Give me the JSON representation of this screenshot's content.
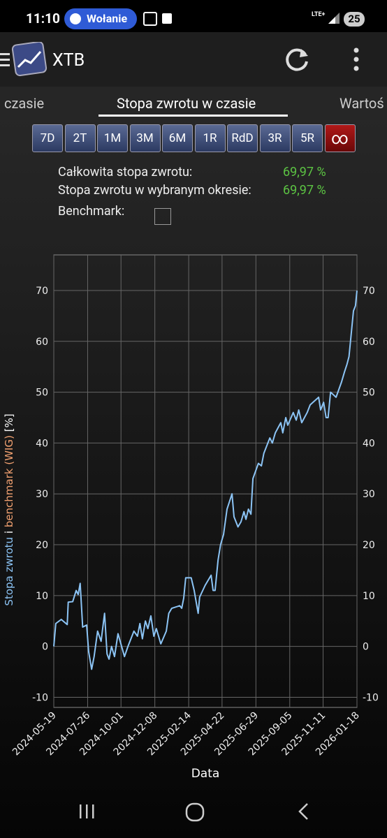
{
  "status_bar": {
    "time": "11:10",
    "call": "Wołanie",
    "network": "LTE+",
    "battery": "25"
  },
  "app_bar": {
    "title": "XTB"
  },
  "tabs": [
    "czasie",
    "Stopa zwrotu w czasie",
    "Wartoś"
  ],
  "periods": [
    "7D",
    "2T",
    "1M",
    "3M",
    "6M",
    "1R",
    "RdD",
    "3R",
    "5R",
    "∞"
  ],
  "stats": [
    {
      "label": "Całkowita stopa zwrotu:",
      "value": "69,97 %"
    },
    {
      "label": "Stopa zwrotu w wybranym okresie:",
      "value": "69,97 %"
    }
  ],
  "benchmark_label": "Benchmark:",
  "chart_data": {
    "type": "line",
    "x_label": "Data",
    "y_label": {
      "series": "Stopa zwrotu",
      "joiner": "i",
      "benchmark": "benchmark (WIG)",
      "unit": "[%]"
    },
    "x": [
      "2024-05-19",
      "2024-05-23",
      "2024-06-03",
      "2024-06-15",
      "2024-06-17",
      "2024-06-26",
      "2024-07-03",
      "2024-07-07",
      "2024-07-11",
      "2024-07-16",
      "2024-07-24",
      "2024-07-28",
      "2024-08-03",
      "2024-08-08",
      "2024-08-15",
      "2024-08-22",
      "2024-08-29",
      "2024-09-03",
      "2024-09-07",
      "2024-09-12",
      "2024-09-18",
      "2024-09-25",
      "2024-10-08",
      "2024-10-15",
      "2024-10-27",
      "2024-11-03",
      "2024-11-08",
      "2024-11-13",
      "2024-11-19",
      "2024-11-24",
      "2024-11-30",
      "2024-12-06",
      "2024-12-11",
      "2024-12-20",
      "2024-12-31",
      "2025-01-05",
      "2025-01-11",
      "2025-01-27",
      "2025-01-31",
      "2025-02-04",
      "2025-02-08",
      "2025-02-19",
      "2025-02-25",
      "2025-03-05",
      "2025-03-08",
      "2025-03-19",
      "2025-03-31",
      "2025-04-04",
      "2025-04-08",
      "2025-04-14",
      "2025-04-19",
      "2025-04-25",
      "2025-05-02",
      "2025-05-12",
      "2025-05-16",
      "2025-05-24",
      "2025-05-30",
      "2025-06-05",
      "2025-06-09",
      "2025-06-14",
      "2025-06-19",
      "2025-06-23",
      "2025-07-04",
      "2025-07-10",
      "2025-07-15",
      "2025-07-27",
      "2025-08-01",
      "2025-08-07",
      "2025-08-18",
      "2025-08-22",
      "2025-08-28",
      "2025-09-01",
      "2025-09-12",
      "2025-09-18",
      "2025-09-23",
      "2025-09-29",
      "2025-10-10",
      "2025-10-16",
      "2025-11-02",
      "2025-11-06",
      "2025-11-12",
      "2025-11-17",
      "2025-11-21",
      "2025-11-26",
      "2025-12-07",
      "2025-12-18",
      "2025-12-24",
      "2025-12-29",
      "2026-01-02",
      "2026-01-07",
      "2026-01-11",
      "2026-01-15",
      "2026-01-18"
    ],
    "series": [
      {
        "color": "#8cc4f5",
        "values": [
          0,
          4.5,
          5.3,
          4.3,
          8.7,
          8.8,
          11,
          10.2,
          12.4,
          3.8,
          4.2,
          -1,
          -4.5,
          -2,
          3,
          1,
          6.5,
          -1.5,
          -2.5,
          0,
          -2,
          2.5,
          -2,
          0,
          3,
          2,
          4.5,
          1.5,
          5,
          3.5,
          6,
          2,
          3.5,
          0.5,
          3,
          6.5,
          7.5,
          8,
          7.5,
          9.5,
          13.5,
          13.5,
          11,
          6.5,
          9.7,
          12,
          14,
          11,
          11,
          17,
          20,
          22,
          27,
          30,
          25.5,
          23.5,
          24.5,
          26.5,
          25,
          27,
          26,
          33,
          36,
          35.5,
          38,
          41,
          40,
          42,
          44,
          42,
          45,
          43.5,
          46,
          44.5,
          46.5,
          44,
          46,
          47.5,
          49,
          46.5,
          48,
          45,
          45,
          50,
          49,
          52,
          54,
          55.5,
          57,
          62,
          66,
          67,
          69.97
        ]
      }
    ],
    "xlim": [
      "2024-05-19",
      "2026-01-18"
    ],
    "xticks": [
      "2024-05-19",
      "2024-07-26",
      "2024-10-01",
      "2024-12-08",
      "2025-02-14",
      "2025-04-22",
      "2025-06-29",
      "2025-09-05",
      "2025-11-11",
      "2026-01-18"
    ],
    "ylim": [
      -12,
      77
    ],
    "yticks": [
      -10,
      0,
      10,
      20,
      30,
      40,
      50,
      60,
      70
    ],
    "grid": true
  }
}
